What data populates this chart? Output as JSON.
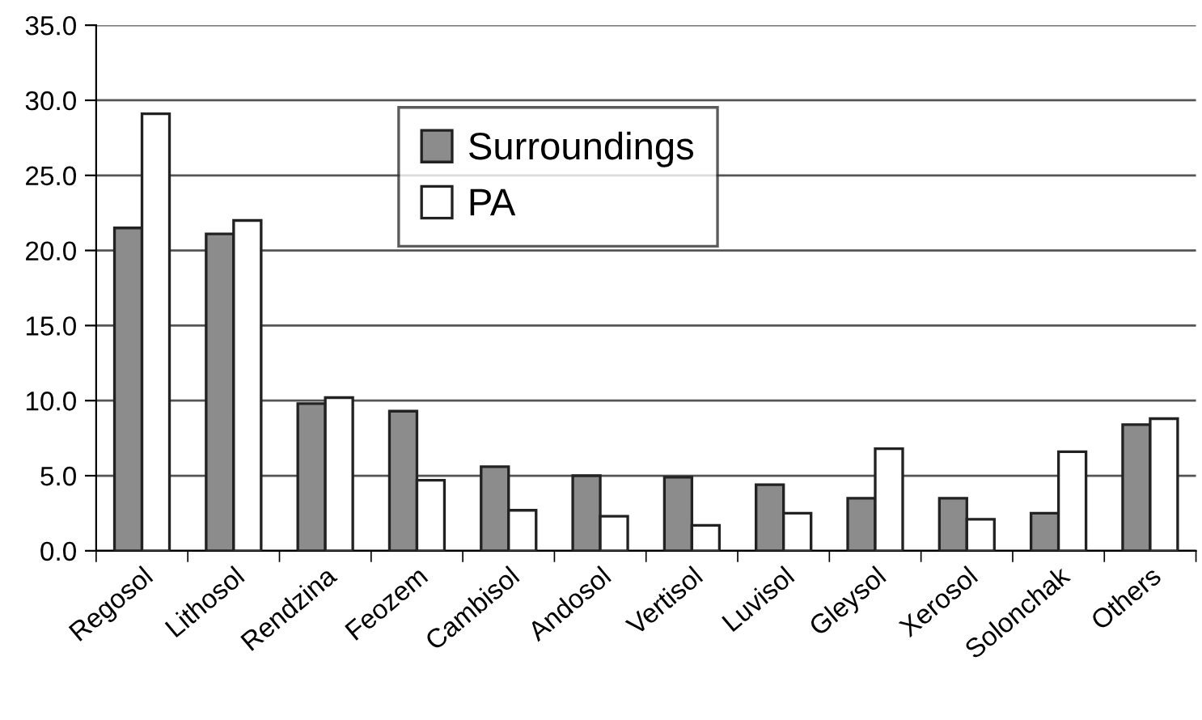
{
  "chart_data": {
    "type": "bar",
    "categories": [
      "Regosol",
      "Lithosol",
      "Rendzina",
      "Feozem",
      "Cambisol",
      "Andosol",
      "Vertisol",
      "Luvisol",
      "Gleysol",
      "Xerosol",
      "Solonchak",
      "Others"
    ],
    "series": [
      {
        "name": "Surroundings",
        "color": "#8c8c8c",
        "values": [
          21.5,
          21.1,
          9.8,
          9.3,
          5.6,
          5.0,
          4.9,
          4.4,
          3.5,
          3.5,
          2.5,
          8.4
        ]
      },
      {
        "name": "PA",
        "color": "#ffffff",
        "values": [
          29.1,
          22.0,
          10.2,
          4.7,
          2.7,
          2.3,
          1.7,
          2.5,
          6.8,
          2.1,
          6.6,
          8.8
        ]
      }
    ],
    "ylim": [
      0,
      35
    ],
    "yticks": [
      {
        "value": 0,
        "label": "0.0"
      },
      {
        "value": 5,
        "label": "5.0"
      },
      {
        "value": 10,
        "label": "10.0"
      },
      {
        "value": 15,
        "label": "15.0"
      },
      {
        "value": 20,
        "label": "20.0"
      },
      {
        "value": 25,
        "label": "25.0"
      },
      {
        "value": 30,
        "label": "30.0"
      },
      {
        "value": 35,
        "label": "35.0"
      }
    ],
    "grid": "y",
    "legend": "top"
  }
}
